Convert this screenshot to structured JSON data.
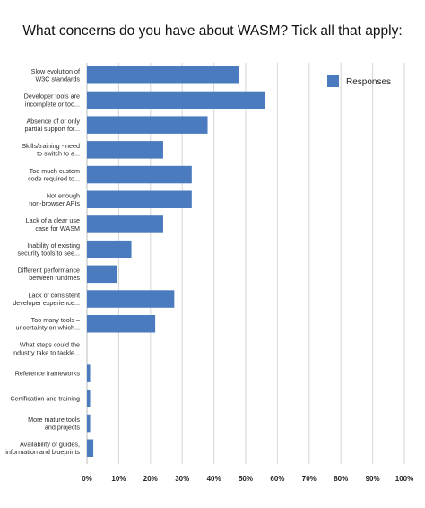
{
  "chart_data": {
    "type": "bar",
    "orientation": "horizontal",
    "title": "What concerns do you have about WASM? Tick all that apply:",
    "xlabel": "",
    "ylabel": "",
    "xlim": [
      0,
      100
    ],
    "x_ticks": [
      "0%",
      "10%",
      "20%",
      "30%",
      "40%",
      "50%",
      "60%",
      "70%",
      "80%",
      "90%",
      "100%"
    ],
    "grid": "vertical",
    "legend_position": "top-right",
    "bar_color": "#4a7bbf",
    "categories": [
      [
        "Slow evolution of",
        "W3C standards"
      ],
      [
        "Developer tools are",
        "incomplete or too..."
      ],
      [
        "Absence of or only",
        "partial support for..."
      ],
      [
        "Skills/training - need",
        "to switch to a..."
      ],
      [
        "Too much custom",
        "code required to..."
      ],
      [
        "Not enough",
        "non-browser APIs"
      ],
      [
        "Lack of a clear use",
        "case for WASM"
      ],
      [
        "Inability of existing",
        "security tools to see..."
      ],
      [
        "Different performance",
        "between runtimes"
      ],
      [
        "Lack of consistent",
        "developer experience..."
      ],
      [
        "Too many tools –",
        "uncertainty on which..."
      ],
      [
        "What steps could the",
        "industry take to tackle..."
      ],
      [
        "Reference frameworks"
      ],
      [
        "Certification and training"
      ],
      [
        "More mature tools",
        "and projects"
      ],
      [
        "Availability of guides,",
        "information and blueprints"
      ]
    ],
    "series": [
      {
        "name": "Responses",
        "values": [
          48,
          56,
          38,
          24,
          33,
          33,
          24,
          14,
          9.5,
          27.5,
          21.5,
          0,
          1,
          1,
          1,
          2
        ]
      }
    ]
  }
}
